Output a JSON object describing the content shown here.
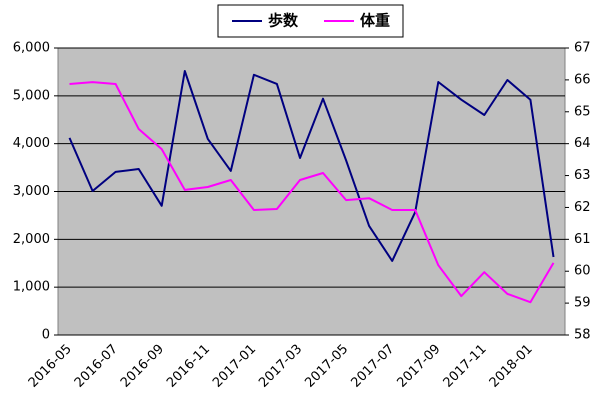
{
  "chart_data": {
    "type": "line",
    "categories": [
      "2016-05",
      null,
      "2016-07",
      null,
      "2016-09",
      null,
      "2016-11",
      null,
      "2017-01",
      null,
      "2017-03",
      null,
      "2017-05",
      null,
      "2017-07",
      null,
      "2017-09",
      null,
      "2017-11",
      null,
      "2018-01",
      null
    ],
    "series": [
      {
        "name": "歩数",
        "color": "#000080",
        "values": [
          4120,
          3010,
          3410,
          3470,
          2700,
          5520,
          4100,
          3430,
          5440,
          5250,
          3700,
          4940,
          3650,
          2280,
          1550,
          2570,
          5290,
          4920,
          4600,
          5330,
          4920,
          1630
        ]
      },
      {
        "name": "体重",
        "color": "#ff00ff",
        "axis": "y2",
        "values": [
          65.87,
          65.93,
          65.87,
          64.46,
          63.83,
          62.55,
          62.64,
          62.86,
          61.92,
          61.95,
          62.86,
          63.08,
          62.23,
          62.29,
          61.92,
          61.92,
          60.19,
          59.22,
          59.97,
          59.29,
          59.03,
          60.26
        ]
      }
    ],
    "ylim": [
      0,
      6000
    ],
    "yticks": [
      0,
      {
        "value": 1000,
        "label": "1,000"
      },
      {
        "value": 2000,
        "label": "2,000"
      },
      {
        "value": 3000,
        "label": "3,000"
      },
      {
        "value": 4000,
        "label": "4,000"
      },
      {
        "value": 5000,
        "label": "5,000"
      },
      {
        "value": 6000,
        "label": "6,000"
      }
    ],
    "y2lim": [
      58,
      67
    ],
    "y2ticks": [
      58,
      59,
      60,
      61,
      62,
      63,
      64,
      65,
      66,
      67
    ],
    "grid": true,
    "legend": "top",
    "plot_background": "#c0c0c0"
  }
}
